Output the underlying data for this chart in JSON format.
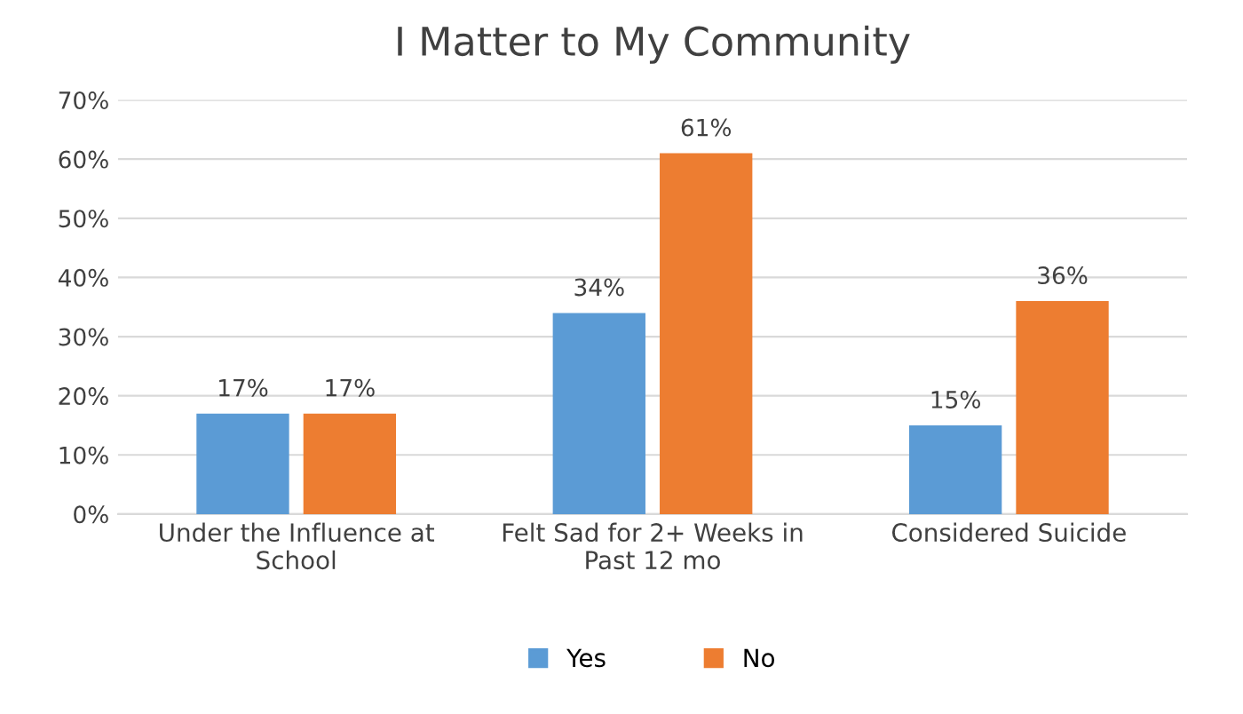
{
  "chart_data": {
    "type": "bar",
    "title": "I Matter to My Community",
    "categories": [
      "Under the Influence at School",
      "Felt Sad for 2+ Weeks in Past 12 mo",
      "Considered Suicide"
    ],
    "series": [
      {
        "name": "Yes",
        "color": "#5b9bd5",
        "values": [
          17,
          34,
          15
        ],
        "value_labels": [
          "17%",
          "34%",
          "15%"
        ]
      },
      {
        "name": "No",
        "color": "#ed7d31",
        "values": [
          17,
          61,
          36
        ],
        "value_labels": [
          "17%",
          "61%",
          "36%"
        ]
      }
    ],
    "ylim": [
      0,
      70
    ],
    "yticks": [
      {
        "value": 0,
        "label": "0%"
      },
      {
        "value": 10,
        "label": "10%"
      },
      {
        "value": 20,
        "label": "20%"
      },
      {
        "value": 30,
        "label": "30%"
      },
      {
        "value": 40,
        "label": "40%"
      },
      {
        "value": 50,
        "label": "50%"
      },
      {
        "value": 60,
        "label": "60%"
      },
      {
        "value": 70,
        "label": "70%"
      }
    ],
    "grid": "y",
    "legend": "bottom"
  }
}
